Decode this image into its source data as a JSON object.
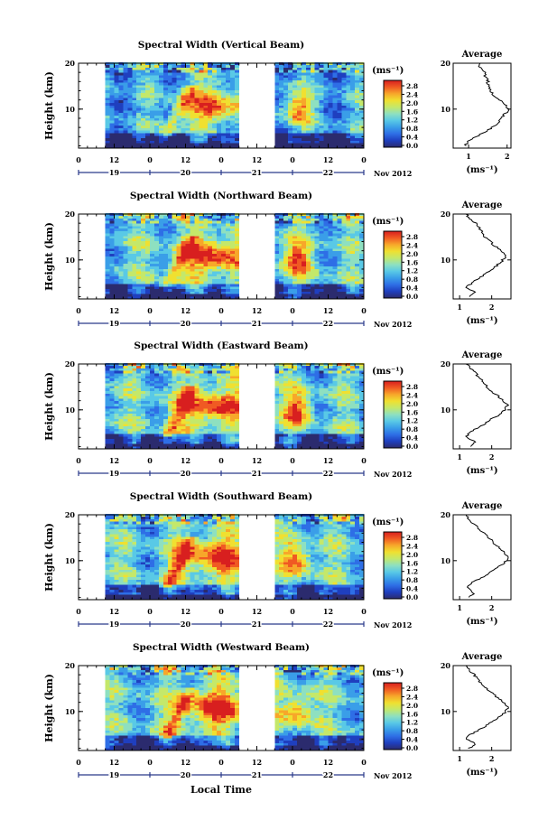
{
  "figure": {
    "x_axis_label": "Local Time",
    "y_axis_label": "Height (km)",
    "time_ticks": [
      "0",
      "12",
      "0",
      "12",
      "0",
      "12",
      "0",
      "12",
      "0"
    ],
    "day_labels": [
      "19",
      "20",
      "21",
      "22"
    ],
    "month_label": "Nov 2012",
    "colorbar_unit": "(ms⁻¹)",
    "colorbar_ticks": [
      "0.0",
      "0.4",
      "0.8",
      "1.2",
      "1.6",
      "2.0",
      "2.4",
      "2.8"
    ],
    "average_title": "Average",
    "average_xlabel": "(ms⁻¹)",
    "colors": {
      "colormap": [
        "#2b2b6e",
        "#1f3fbf",
        "#2e6ee6",
        "#3a9ee8",
        "#59c9e6",
        "#8ee0c0",
        "#c4e86a",
        "#f0e030",
        "#f7a72a",
        "#f05a23",
        "#d81f1f"
      ],
      "data_gap": "#ffffff",
      "axis": "#000000",
      "date_axis": "#2a3a8a"
    }
  },
  "chart_data": [
    {
      "type": "heatmap",
      "title": "Spectral Width (Vertical Beam)",
      "x_units": "hours since Nov 19 2012 00:00 local time",
      "xlim": [
        0,
        96
      ],
      "ylim": [
        1.5,
        20
      ],
      "data_gaps_hours": [
        [
          0,
          9
        ],
        [
          54,
          66
        ]
      ],
      "colorbar_range": [
        0.0,
        3.0
      ],
      "average": {
        "xlabel": "(ms⁻¹)",
        "xticks": [
          "1",
          "2"
        ],
        "xlim": [
          0.6,
          2.1
        ],
        "yticks": [
          "10",
          "20"
        ],
        "ylim": [
          1.5,
          20
        ],
        "height_km": [
          2,
          3,
          4,
          5,
          6,
          7,
          8,
          9,
          10,
          11,
          12,
          13,
          14,
          15,
          16,
          17,
          18,
          19,
          20
        ],
        "values": [
          0.9,
          1.0,
          1.2,
          1.45,
          1.6,
          1.75,
          1.85,
          1.95,
          2.05,
          1.95,
          1.8,
          1.65,
          1.55,
          1.5,
          1.5,
          1.45,
          1.4,
          1.3,
          1.3
        ]
      }
    },
    {
      "type": "heatmap",
      "title": "Spectral Width (Northward Beam)",
      "x_units": "hours since Nov 19 2012 00:00 local time",
      "xlim": [
        0,
        96
      ],
      "ylim": [
        1.5,
        20
      ],
      "data_gaps_hours": [
        [
          0,
          9
        ],
        [
          54,
          66
        ]
      ],
      "colorbar_range": [
        0.0,
        3.0
      ],
      "average": {
        "xlabel": "(ms⁻¹)",
        "xticks": [
          "1",
          "2"
        ],
        "xlim": [
          0.8,
          2.6
        ],
        "yticks": [
          "10",
          "20"
        ],
        "ylim": [
          1.5,
          20
        ],
        "height_km": [
          2,
          3,
          4,
          5,
          6,
          7,
          8,
          9,
          10,
          11,
          12,
          13,
          14,
          15,
          16,
          17,
          18,
          19,
          20
        ],
        "values": [
          1.3,
          1.5,
          1.2,
          1.4,
          1.6,
          1.8,
          2.0,
          2.2,
          2.35,
          2.45,
          2.3,
          2.1,
          1.95,
          1.8,
          1.7,
          1.6,
          1.5,
          1.3,
          1.2
        ]
      }
    },
    {
      "type": "heatmap",
      "title": "Spectral Width (Eastward Beam)",
      "x_units": "hours since Nov 19 2012 00:00 local time",
      "xlim": [
        0,
        96
      ],
      "ylim": [
        1.5,
        20
      ],
      "data_gaps_hours": [
        [
          0,
          9
        ],
        [
          54,
          66
        ]
      ],
      "colorbar_range": [
        0.0,
        3.0
      ],
      "average": {
        "xlabel": "(ms⁻¹)",
        "xticks": [
          "1",
          "2"
        ],
        "xlim": [
          0.8,
          2.6
        ],
        "yticks": [
          "10",
          "20"
        ],
        "ylim": [
          1.5,
          20
        ],
        "height_km": [
          2,
          3,
          4,
          5,
          6,
          7,
          8,
          9,
          10,
          11,
          12,
          13,
          14,
          15,
          16,
          17,
          18,
          19,
          20
        ],
        "values": [
          1.3,
          1.5,
          1.2,
          1.3,
          1.55,
          1.8,
          2.0,
          2.25,
          2.4,
          2.5,
          2.35,
          2.2,
          2.0,
          1.85,
          1.75,
          1.6,
          1.5,
          1.35,
          1.2
        ]
      }
    },
    {
      "type": "heatmap",
      "title": "Spectral Width (Southward Beam)",
      "x_units": "hours since Nov 19 2012 00:00 local time",
      "xlim": [
        0,
        96
      ],
      "ylim": [
        1.5,
        20
      ],
      "data_gaps_hours": [
        [
          0,
          9
        ],
        [
          54,
          66
        ]
      ],
      "colorbar_range": [
        0.0,
        3.0
      ],
      "average": {
        "xlabel": "(ms⁻¹)",
        "xticks": [
          "1",
          "2"
        ],
        "xlim": [
          0.8,
          2.6
        ],
        "yticks": [
          "10",
          "20"
        ],
        "ylim": [
          1.5,
          20
        ],
        "height_km": [
          2,
          3,
          4,
          5,
          6,
          7,
          8,
          9,
          10,
          11,
          12,
          13,
          14,
          15,
          16,
          17,
          18,
          19,
          20
        ],
        "values": [
          1.3,
          1.45,
          1.25,
          1.35,
          1.6,
          1.85,
          2.05,
          2.3,
          2.45,
          2.5,
          2.35,
          2.2,
          2.05,
          1.9,
          1.75,
          1.6,
          1.45,
          1.3,
          1.2
        ]
      }
    },
    {
      "type": "heatmap",
      "title": "Spectral Width (Westward Beam)",
      "x_units": "hours since Nov 19 2012 00:00 local time",
      "xlim": [
        0,
        96
      ],
      "ylim": [
        1.5,
        20
      ],
      "data_gaps_hours": [
        [
          0,
          9
        ],
        [
          54,
          66
        ]
      ],
      "colorbar_range": [
        0.0,
        3.0
      ],
      "average": {
        "xlabel": "(ms⁻¹)",
        "xticks": [
          "1",
          "2"
        ],
        "xlim": [
          0.8,
          2.6
        ],
        "yticks": [
          "10",
          "20"
        ],
        "ylim": [
          1.5,
          20
        ],
        "height_km": [
          2,
          3,
          4,
          5,
          6,
          7,
          8,
          9,
          10,
          11,
          12,
          13,
          14,
          15,
          16,
          17,
          18,
          19,
          20
        ],
        "values": [
          1.3,
          1.5,
          1.2,
          1.35,
          1.6,
          1.85,
          2.05,
          2.3,
          2.45,
          2.5,
          2.35,
          2.2,
          2.0,
          1.85,
          1.7,
          1.55,
          1.45,
          1.3,
          1.2
        ]
      }
    }
  ]
}
